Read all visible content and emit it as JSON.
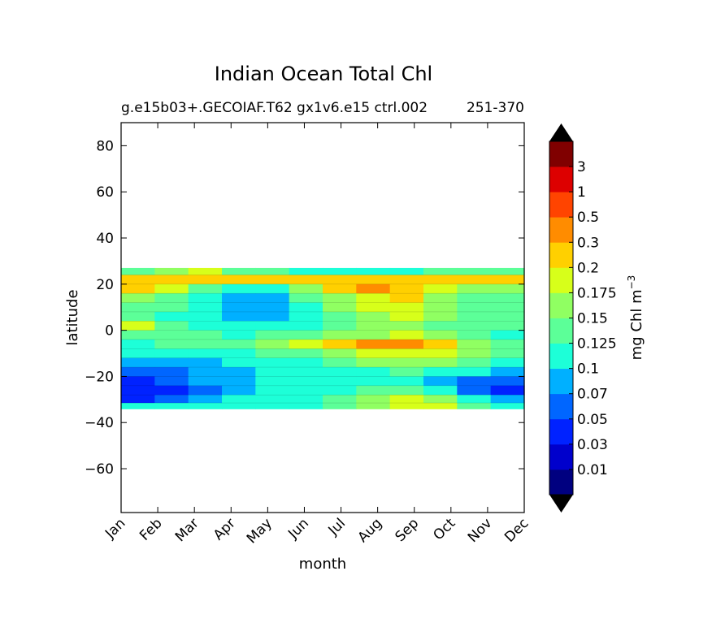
{
  "chart_data": {
    "type": "heatmap",
    "subtype": "filled-contour",
    "title": "Indian Ocean Total Chl",
    "subtitle_left": "g.e15b03+.GECOIAF.T62 gx1v6.e15 ctrl.002",
    "subtitle_right": "251-370",
    "xlabel": "month",
    "ylabel": "latitude",
    "x_tick_labels": [
      "Jan",
      "Feb",
      "Mar",
      "Apr",
      "May",
      "Jun",
      "Jul",
      "Aug",
      "Sep",
      "Oct",
      "Nov",
      "Dec"
    ],
    "x_range": [
      0,
      11
    ],
    "y_ticks": [
      80,
      60,
      40,
      20,
      0,
      -20,
      -40,
      -60
    ],
    "y_tick_labels": [
      "80",
      "60",
      "40",
      "20",
      "0",
      "−20",
      "−40",
      "−60"
    ],
    "y_range": [
      -79,
      90
    ],
    "data_lat_range": [
      -34,
      27
    ],
    "lat_rows": [
      26,
      22,
      18,
      14,
      10,
      6,
      2,
      -2,
      -6,
      -10,
      -14,
      -18,
      -22,
      -26,
      -30,
      -33
    ],
    "level_matrix": [
      [
        6,
        7,
        8,
        6,
        6,
        5,
        5,
        5,
        5,
        6,
        6,
        6
      ],
      [
        9,
        9,
        9,
        9,
        9,
        9,
        9,
        9,
        9,
        9,
        9,
        9
      ],
      [
        9,
        8,
        6,
        5,
        5,
        7,
        9,
        10,
        9,
        8,
        7,
        7
      ],
      [
        7,
        6,
        5,
        4,
        4,
        6,
        7,
        8,
        9,
        7,
        6,
        6
      ],
      [
        6,
        6,
        5,
        4,
        4,
        5,
        7,
        8,
        8,
        7,
        6,
        6
      ],
      [
        6,
        5,
        5,
        4,
        4,
        5,
        6,
        7,
        8,
        7,
        6,
        6
      ],
      [
        8,
        6,
        5,
        5,
        5,
        5,
        6,
        7,
        7,
        6,
        6,
        6
      ],
      [
        6,
        6,
        6,
        5,
        6,
        6,
        7,
        7,
        8,
        7,
        6,
        5
      ],
      [
        5,
        6,
        6,
        6,
        7,
        8,
        9,
        10,
        10,
        9,
        7,
        6
      ],
      [
        5,
        5,
        5,
        5,
        6,
        6,
        7,
        8,
        8,
        8,
        7,
        6
      ],
      [
        4,
        4,
        4,
        5,
        5,
        5,
        6,
        7,
        7,
        7,
        6,
        5
      ],
      [
        3,
        3,
        4,
        4,
        5,
        5,
        5,
        5,
        6,
        5,
        5,
        4
      ],
      [
        2,
        3,
        4,
        4,
        5,
        5,
        5,
        5,
        5,
        4,
        3,
        3
      ],
      [
        2,
        2,
        3,
        4,
        5,
        5,
        5,
        6,
        6,
        5,
        3,
        2
      ],
      [
        2,
        3,
        4,
        5,
        5,
        5,
        6,
        7,
        8,
        7,
        5,
        4
      ],
      [
        5,
        5,
        5,
        5,
        5,
        5,
        6,
        7,
        8,
        8,
        6,
        5
      ]
    ],
    "colorbar": {
      "label": "mg Chl m",
      "label_exponent": "−3",
      "tick_labels": [
        "0.01",
        "0.03",
        "0.05",
        "0.07",
        "0.1",
        "0.125",
        "0.15",
        "0.175",
        "0.2",
        "0.3",
        "0.5",
        "1",
        "3"
      ],
      "colors": [
        "#000080",
        "#0000cc",
        "#0022ff",
        "#0066ff",
        "#00b0ff",
        "#1dffd8",
        "#5cff98",
        "#90ff62",
        "#d7ff1a",
        "#ffd000",
        "#ff8c00",
        "#ff4400",
        "#dd0000",
        "#800000"
      ],
      "extend": "both",
      "under_color": "#000000",
      "over_color": "#000000"
    }
  }
}
